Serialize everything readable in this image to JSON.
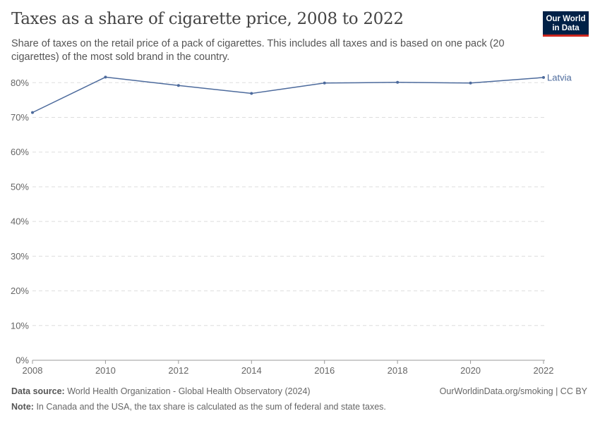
{
  "header": {
    "title": "Taxes as a share of cigarette price, 2008 to 2022",
    "subtitle": "Share of taxes on the retail price of a pack of cigarettes. This includes all taxes and is based on one pack (20 cigarettes) of the most sold brand in the country.",
    "logo": "Our World in Data"
  },
  "chart_data": {
    "type": "line",
    "x": [
      2008,
      2010,
      2012,
      2014,
      2016,
      2018,
      2020,
      2022
    ],
    "series": [
      {
        "name": "Latvia",
        "values": [
          71.4,
          81.6,
          79.2,
          76.9,
          79.9,
          80.1,
          79.9,
          81.5
        ],
        "color": "#4c6a9c"
      }
    ],
    "yticks": [
      "0%",
      "10%",
      "20%",
      "30%",
      "40%",
      "50%",
      "60%",
      "70%",
      "80%"
    ],
    "ytick_values": [
      0,
      10,
      20,
      30,
      40,
      50,
      60,
      70,
      80
    ],
    "xticks": [
      "2008",
      "2010",
      "2012",
      "2014",
      "2016",
      "2018",
      "2020",
      "2022"
    ],
    "ylim": [
      0,
      80
    ],
    "xlim": [
      2008,
      2022
    ],
    "grid": "horizontal dashed",
    "legend": "line-end label"
  },
  "footer": {
    "source_label": "Data source:",
    "source": "World Health Organization - Global Health Observatory (2024)",
    "url": "OurWorldinData.org/smoking | CC BY",
    "note_label": "Note:",
    "note": "In Canada and the USA, the tax share is calculated as the sum of federal and state taxes."
  }
}
